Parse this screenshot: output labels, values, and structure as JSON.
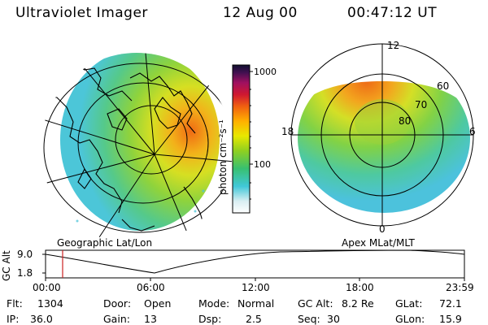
{
  "header": {
    "instrument": "Ultraviolet Imager",
    "date": "12 Aug 00",
    "time": "00:47:12 UT"
  },
  "colorbar": {
    "unit_label": "photon cm⁻²s⁻¹",
    "ticks": [
      "1000",
      "100"
    ]
  },
  "left_panel": {
    "caption": "Geographic Lat/Lon"
  },
  "right_panel": {
    "caption": "Apex  MLat/MLT",
    "mlt_labels": {
      "top": "12",
      "left": "18",
      "right": "6",
      "bottom": "0"
    },
    "lat_labels": [
      "60",
      "70",
      "80"
    ]
  },
  "altitude_plot": {
    "ylabel": "GC Alt",
    "yticks": [
      "9.0",
      "1.8"
    ],
    "xticks": [
      "00:00",
      "06:00",
      "12:00",
      "18:00",
      "23:59"
    ],
    "marker_time": "00:47"
  },
  "info": {
    "flt_label": "Flt:",
    "flt": "1304",
    "ip_label": "IP:",
    "ip": "36.0",
    "door_label": "Door:",
    "door": "Open",
    "gain_label": "Gain:",
    "gain": "13",
    "mode_label": "Mode:",
    "mode": "Normal",
    "dsp_label": "Dsp:",
    "dsp": "2.5",
    "gcalt_label": "GC Alt:",
    "gcalt": "8.2 Re",
    "seq_label": "Seq:",
    "seq": "30",
    "glat_label": "GLat:",
    "glat": "72.1",
    "glon_label": "GLon:",
    "glon": "15.9"
  },
  "colors": {
    "marker": "#cc2222",
    "aurora_low": "#56c7e0",
    "aurora_mid": "#9ad23a",
    "aurora_high": "#f07a18"
  }
}
